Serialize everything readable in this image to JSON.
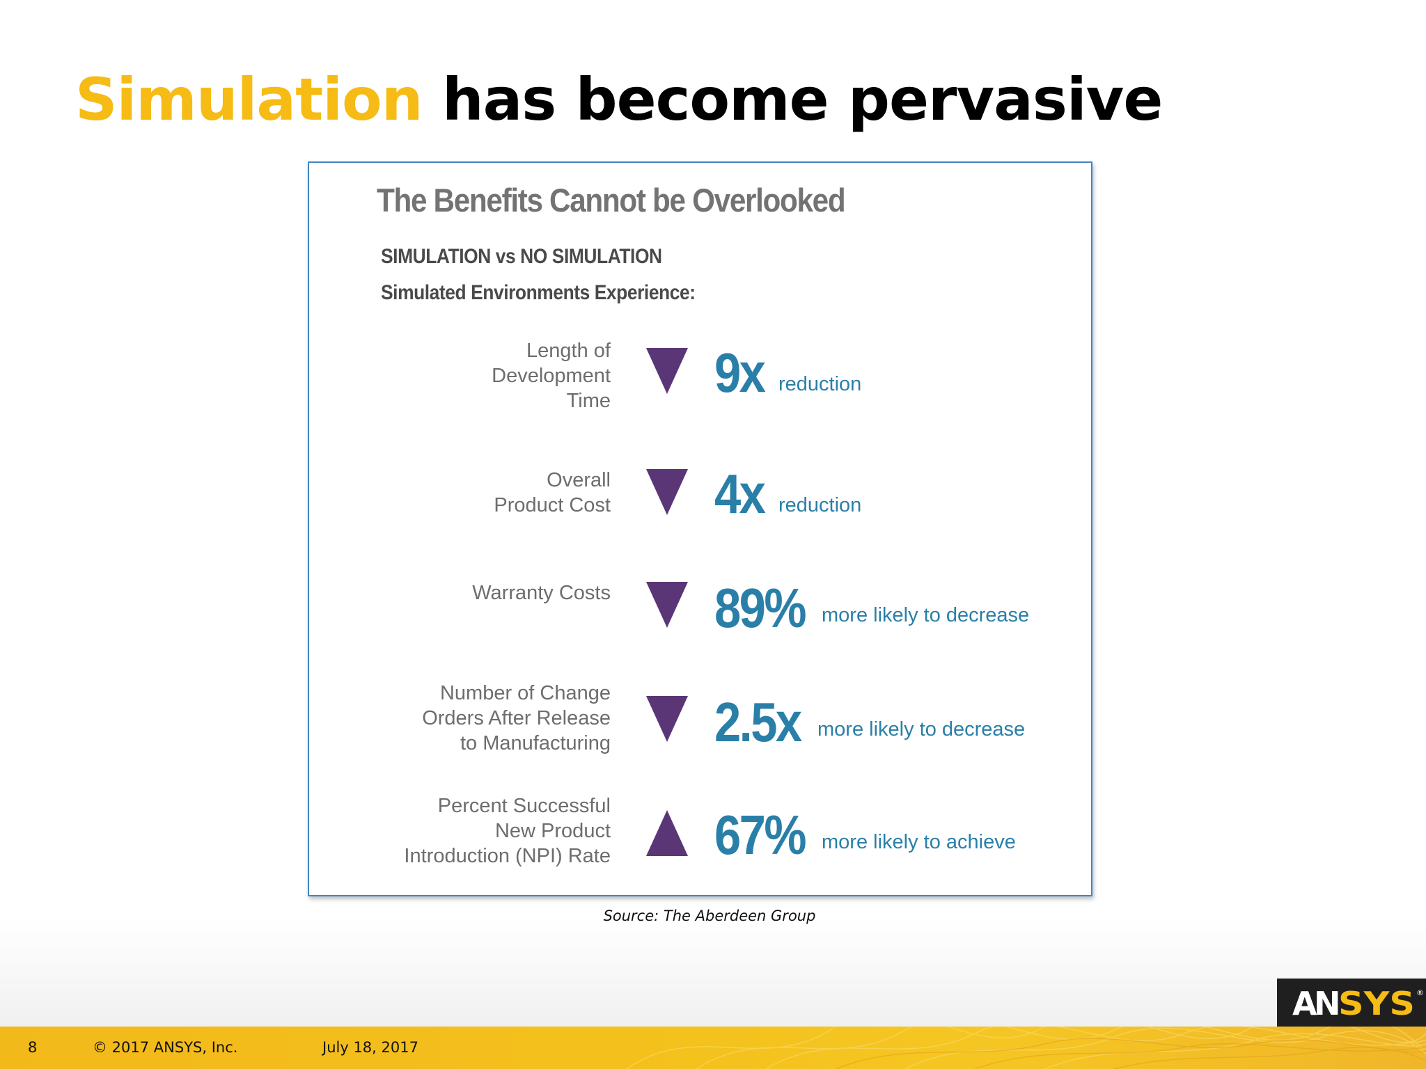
{
  "slide": {
    "title_accent": "Simulation",
    "title_rest": "has become pervasive",
    "source": "Source: The Aberdeen Group"
  },
  "panel": {
    "heading": "The Benefits Cannot be Overlooked",
    "subheading": "SIMULATION vs NO SIMULATION",
    "intro": "Simulated Environments Experience:",
    "metrics": [
      {
        "label": "Length of\nDevelopment\nTime",
        "direction": "down",
        "value": "9x",
        "description": "reduction"
      },
      {
        "label": "Overall\nProduct Cost",
        "direction": "down",
        "value": "4x",
        "description": "reduction"
      },
      {
        "label": "Warranty Costs",
        "direction": "down",
        "value": "89%",
        "description": "more likely to decrease"
      },
      {
        "label": "Number of Change\nOrders After Release\nto Manufacturing",
        "direction": "down",
        "value": "2.5x",
        "description": "more likely to decrease"
      },
      {
        "label": "Percent Successful\nNew Product\nIntroduction (NPI) Rate",
        "direction": "up",
        "value": "67%",
        "description": "more likely to achieve"
      }
    ]
  },
  "footer": {
    "page_number": "8",
    "copyright": "© 2017 ANSYS, Inc.",
    "date": "July 18, 2017"
  },
  "logo": {
    "text_a": "A",
    "text_n": "N",
    "text_sys": "SYS",
    "registered": "®"
  },
  "colors": {
    "accent_yellow": "#f6bb14",
    "metric_blue": "#2a7fa8",
    "arrow_purple": "#5b3676",
    "panel_border": "#3f86c3"
  },
  "icons": {
    "down_arrow": "triangle-down-icon",
    "up_arrow": "triangle-up-icon"
  }
}
